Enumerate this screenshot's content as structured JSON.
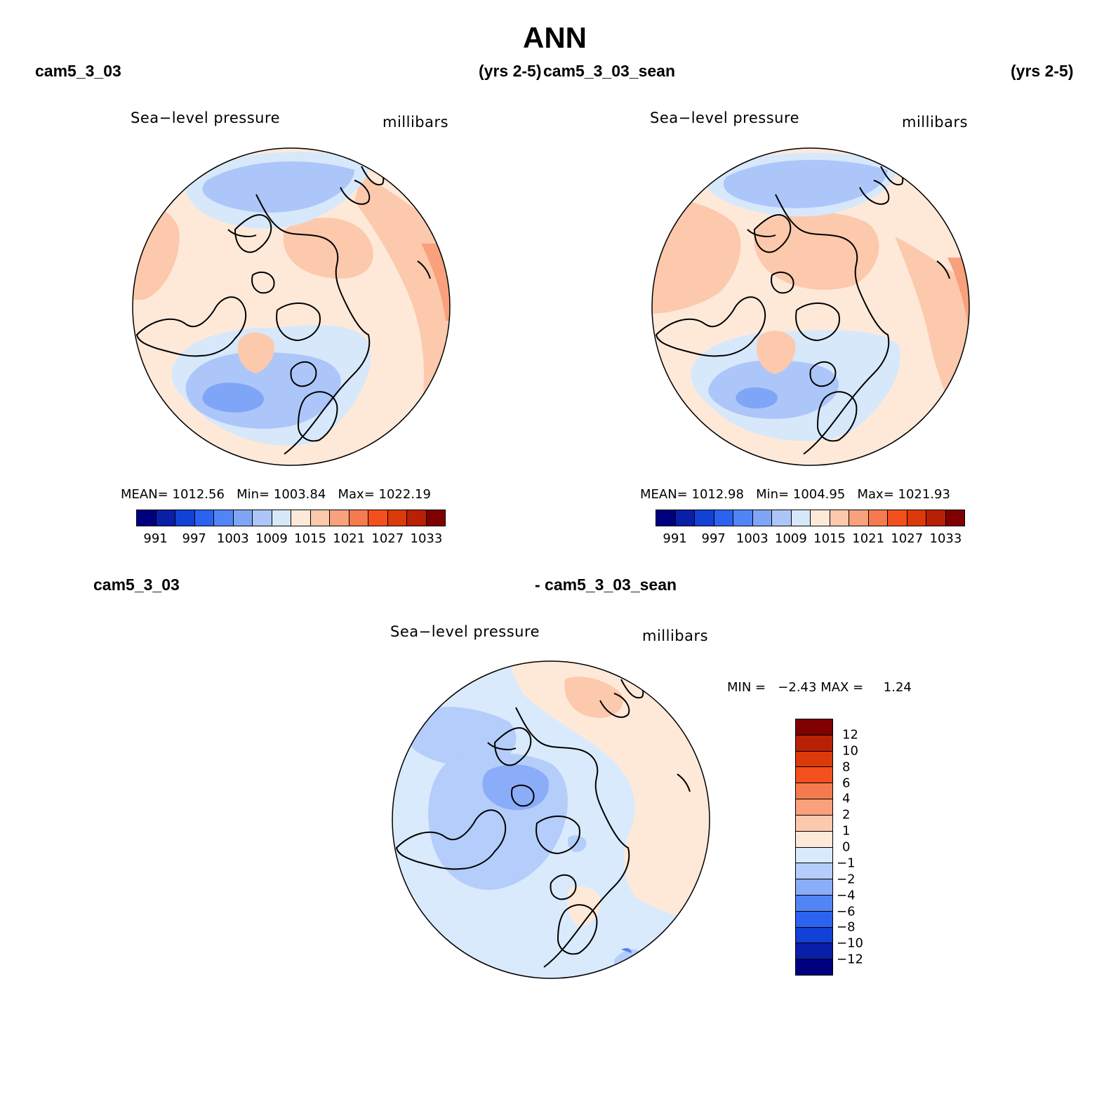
{
  "title": "ANN",
  "colors": {
    "abs_levels": [
      "#00007f",
      "#0a1fa8",
      "#1241d6",
      "#2c62f0",
      "#5285f4",
      "#7fa6f6",
      "#adc6f9",
      "#d7e8fb",
      "#fee9d9",
      "#fcc9ad",
      "#f9a07c",
      "#f67a4f",
      "#f3501e",
      "#dc3a0a",
      "#b82106",
      "#7f0000"
    ],
    "diff_levels": [
      "#00007f",
      "#0a1fa8",
      "#1241d6",
      "#2c62f0",
      "#5285f4",
      "#8bacf8",
      "#b4cdfa",
      "#d9eafc",
      "#fee9d9",
      "#fcc9ad",
      "#f9a07c",
      "#f67a4f",
      "#f3501e",
      "#dc3a0a",
      "#b82106",
      "#7f0000"
    ]
  },
  "panels": [
    {
      "case": "cam5_3_03",
      "years": "(yrs 2-5)",
      "variable": "Sea−level pressure",
      "units": "millibars",
      "stats": {
        "mean_label": "MEAN=",
        "mean": "1012.56",
        "min_label": "Min=",
        "min": "1003.84",
        "max_label": "Max=",
        "max": "1022.19"
      },
      "colorbar_ticks": [
        "991",
        "997",
        "1003",
        "1009",
        "1015",
        "1021",
        "1027",
        "1033"
      ]
    },
    {
      "case": "cam5_3_03_sean",
      "years": "(yrs 2-5)",
      "variable": "Sea−level pressure",
      "units": "millibars",
      "stats": {
        "mean_label": "MEAN=",
        "mean": "1012.98",
        "min_label": "Min=",
        "min": "1004.95",
        "max_label": "Max=",
        "max": "1021.93"
      },
      "colorbar_ticks": [
        "991",
        "997",
        "1003",
        "1009",
        "1015",
        "1021",
        "1027",
        "1033"
      ]
    }
  ],
  "difference": {
    "case_left": "cam5_3_03",
    "case_right": "- cam5_3_03_sean",
    "variable": "Sea−level pressure",
    "units": "millibars",
    "minmax": {
      "min_label": "MIN =",
      "min": "−2.43",
      "max_label": "MAX =",
      "max": "1.24"
    },
    "colorbar_ticks": [
      "12",
      "10",
      "8",
      "6",
      "4",
      "2",
      "1",
      "0",
      "−1",
      "−2",
      "−4",
      "−6",
      "−8",
      "−10",
      "−12"
    ]
  }
}
